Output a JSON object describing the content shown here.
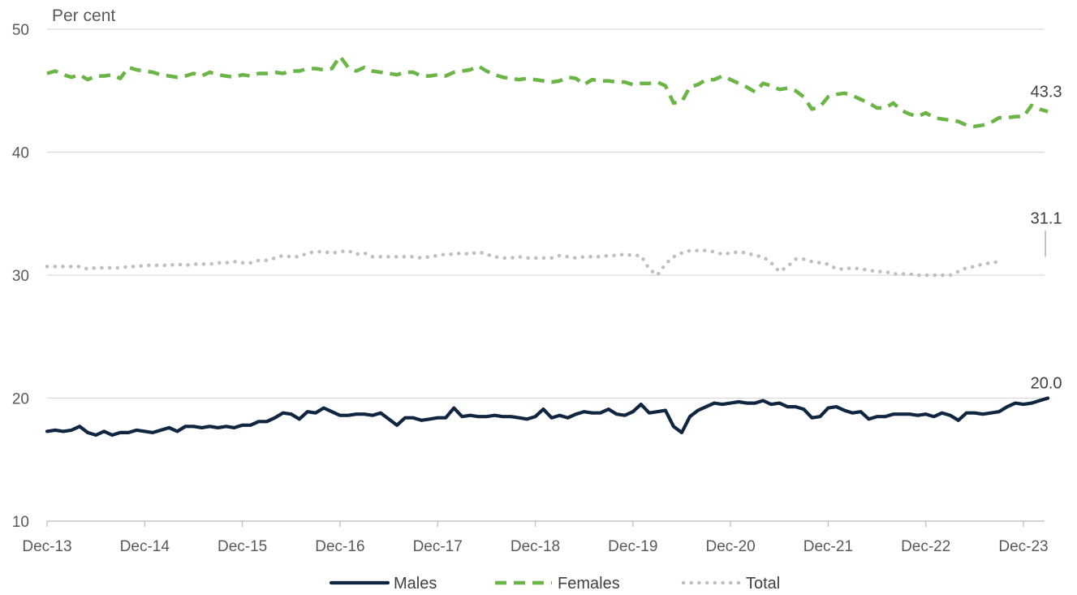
{
  "chart_data": {
    "type": "line",
    "ylabel": "Per cent",
    "ylim": [
      10,
      50
    ],
    "y_ticks": [
      "10",
      "20",
      "30",
      "40",
      "50"
    ],
    "x_start": "Dec-13",
    "x_end": "Mar-24",
    "x_tick_labels": [
      "Dec-13",
      "Dec-14",
      "Dec-15",
      "Dec-16",
      "Dec-17",
      "Dec-18",
      "Dec-19",
      "Dec-20",
      "Dec-21",
      "Dec-22",
      "Dec-23"
    ],
    "grid": true,
    "legend_position": "bottom",
    "series": [
      {
        "name": "Males",
        "color": "#0f2540",
        "style": "solid",
        "end_label": "20.0",
        "values": [
          17.3,
          17.4,
          17.3,
          17.4,
          17.7,
          17.2,
          17.0,
          17.3,
          17.0,
          17.2,
          17.2,
          17.4,
          17.3,
          17.2,
          17.4,
          17.6,
          17.3,
          17.7,
          17.7,
          17.6,
          17.7,
          17.6,
          17.7,
          17.6,
          17.8,
          17.8,
          18.1,
          18.1,
          18.4,
          18.8,
          18.7,
          18.3,
          18.9,
          18.8,
          19.2,
          18.9,
          18.6,
          18.6,
          18.7,
          18.7,
          18.6,
          18.8,
          18.3,
          17.8,
          18.4,
          18.4,
          18.2,
          18.3,
          18.4,
          18.4,
          19.2,
          18.5,
          18.6,
          18.5,
          18.5,
          18.6,
          18.5,
          18.5,
          18.4,
          18.3,
          18.5,
          19.1,
          18.4,
          18.6,
          18.4,
          18.7,
          18.9,
          18.8,
          18.8,
          19.1,
          18.7,
          18.6,
          18.9,
          19.5,
          18.8,
          18.9,
          19.0,
          17.7,
          17.2,
          18.5,
          19.0,
          19.3,
          19.6,
          19.5,
          19.6,
          19.7,
          19.6,
          19.6,
          19.8,
          19.5,
          19.6,
          19.3,
          19.3,
          19.1,
          18.4,
          18.5,
          19.2,
          19.3,
          19.0,
          18.8,
          18.9,
          18.3,
          18.5,
          18.5,
          18.7,
          18.7,
          18.7,
          18.6,
          18.7,
          18.5,
          18.8,
          18.6,
          18.2,
          18.8,
          18.8,
          18.7,
          18.8,
          18.9,
          19.3,
          19.6,
          19.5,
          19.6,
          19.8,
          20.0
        ]
      },
      {
        "name": "Females",
        "color": "#6ab545",
        "style": "dashed",
        "end_label": "43.3",
        "values": [
          46.4,
          46.6,
          46.3,
          46.1,
          46.3,
          45.9,
          46.2,
          46.2,
          46.3,
          46.0,
          46.9,
          46.7,
          46.6,
          46.5,
          46.3,
          46.2,
          46.1,
          46.2,
          46.4,
          46.2,
          46.5,
          46.3,
          46.2,
          46.1,
          46.3,
          46.2,
          46.4,
          46.4,
          46.5,
          46.4,
          46.6,
          46.6,
          46.8,
          46.8,
          46.7,
          46.8,
          47.8,
          46.9,
          46.6,
          46.9,
          46.6,
          46.5,
          46.4,
          46.3,
          46.5,
          46.5,
          46.2,
          46.2,
          46.3,
          46.2,
          46.5,
          46.6,
          46.7,
          47.0,
          46.6,
          46.3,
          46.1,
          46.0,
          45.9,
          46.0,
          45.9,
          45.8,
          45.7,
          45.8,
          46.1,
          46.0,
          45.5,
          45.9,
          45.8,
          45.8,
          45.7,
          45.7,
          45.5,
          45.6,
          45.6,
          45.7,
          45.4,
          44.0,
          44.1,
          45.3,
          45.5,
          45.9,
          45.9,
          46.2,
          45.9,
          45.6,
          45.3,
          44.9,
          45.6,
          45.4,
          45.1,
          45.2,
          45.0,
          44.5,
          43.5,
          43.7,
          44.5,
          44.7,
          44.8,
          44.6,
          44.3,
          44.0,
          43.6,
          43.6,
          44.0,
          43.4,
          43.1,
          42.9,
          43.2,
          42.8,
          42.7,
          42.6,
          42.5,
          42.2,
          42.1,
          42.2,
          42.4,
          42.8,
          42.8,
          42.9,
          42.9,
          43.8,
          43.5,
          43.3
        ]
      },
      {
        "name": "Total",
        "color": "#bfbfbf",
        "style": "dotted",
        "end_label": "31.1",
        "values": [
          30.7,
          30.7,
          30.7,
          30.7,
          30.7,
          30.5,
          30.6,
          30.6,
          30.6,
          30.6,
          30.7,
          30.7,
          30.8,
          30.8,
          30.8,
          30.8,
          30.9,
          30.8,
          30.9,
          30.9,
          30.9,
          31.0,
          31.0,
          31.1,
          31.0,
          31.0,
          31.2,
          31.2,
          31.4,
          31.6,
          31.5,
          31.5,
          31.8,
          31.9,
          31.9,
          31.8,
          31.9,
          32.0,
          31.7,
          31.8,
          31.5,
          31.5,
          31.5,
          31.5,
          31.5,
          31.5,
          31.4,
          31.5,
          31.6,
          31.7,
          31.7,
          31.8,
          31.7,
          31.9,
          31.7,
          31.5,
          31.4,
          31.4,
          31.5,
          31.4,
          31.4,
          31.4,
          31.4,
          31.6,
          31.5,
          31.4,
          31.5,
          31.5,
          31.5,
          31.6,
          31.6,
          31.7,
          31.6,
          31.6,
          30.5,
          30.0,
          30.9,
          31.5,
          31.8,
          32.0,
          32.0,
          32.0,
          31.9,
          31.7,
          31.8,
          31.9,
          31.8,
          31.6,
          31.5,
          31.0,
          30.3,
          30.7,
          31.3,
          31.3,
          31.1,
          31.0,
          30.9,
          30.5,
          30.5,
          30.6,
          30.5,
          30.4,
          30.3,
          30.3,
          30.1,
          30.1,
          30.1,
          30.0,
          30.0,
          30.0,
          30.0,
          30.0,
          30.3,
          30.6,
          30.7,
          30.9,
          31.0,
          31.1
        ]
      }
    ]
  }
}
